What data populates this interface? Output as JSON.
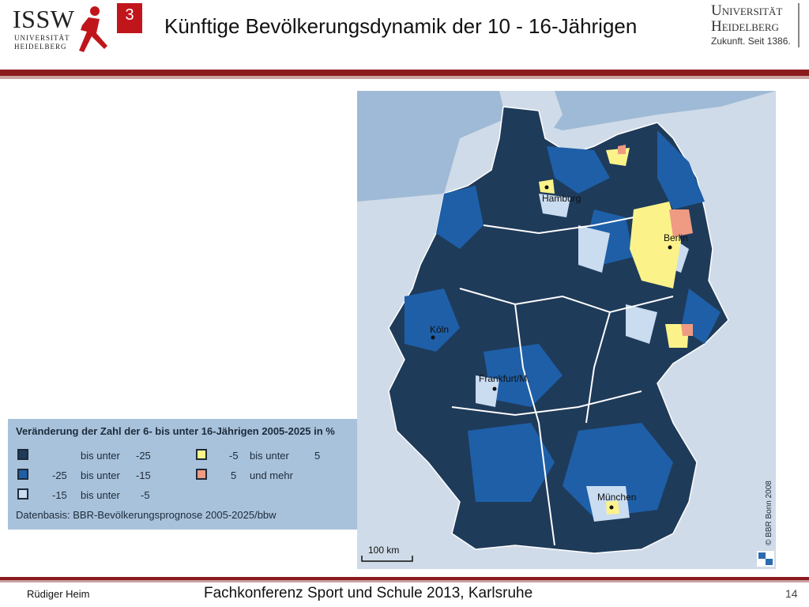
{
  "header": {
    "logo_issw": "ISSW",
    "logo_issw_sub_line1": "UNIVERSITÄT",
    "logo_issw_sub_line2": "HEIDELBERG",
    "slide_badge": "3",
    "title": "Künftige Bevölkerungsdynamik der 10 - 16-Jährigen",
    "uni_line1": "Universität",
    "uni_line2": "Heidelberg",
    "uni_line3": "Zukunft. Seit 1386."
  },
  "map": {
    "cities": [
      "Hamburg",
      "Berlin",
      "Köln",
      "Frankfurt/M.",
      "München"
    ],
    "scale_label": "100 km",
    "copyright": "© BBR Bonn 2008"
  },
  "legend": {
    "title": "Veränderung der Zahl der 6- bis unter 16-Jährigen 2005-2025 in %",
    "items": [
      {
        "color": "#1f3b5a",
        "from": "",
        "conn": "bis unter",
        "to": "-25"
      },
      {
        "color": "#1e5fa8",
        "from": "-25",
        "conn": "bis unter",
        "to": "-15"
      },
      {
        "color": "#c9dcf0",
        "from": "-15",
        "conn": "bis unter",
        "to": "-5"
      },
      {
        "color": "#fbf38a",
        "from": "-5",
        "conn": "bis unter",
        "to": "5"
      },
      {
        "color": "#ef9a82",
        "from": "5",
        "conn": "und mehr",
        "to": ""
      }
    ],
    "source": "Datenbasis: BBR-Bevölkerungsprognose 2005-2025/bbw"
  },
  "footer": {
    "author": "Rüdiger Heim",
    "conference": "Fachkonferenz Sport und Schule 2013, Karlsruhe",
    "page_number": "14"
  }
}
